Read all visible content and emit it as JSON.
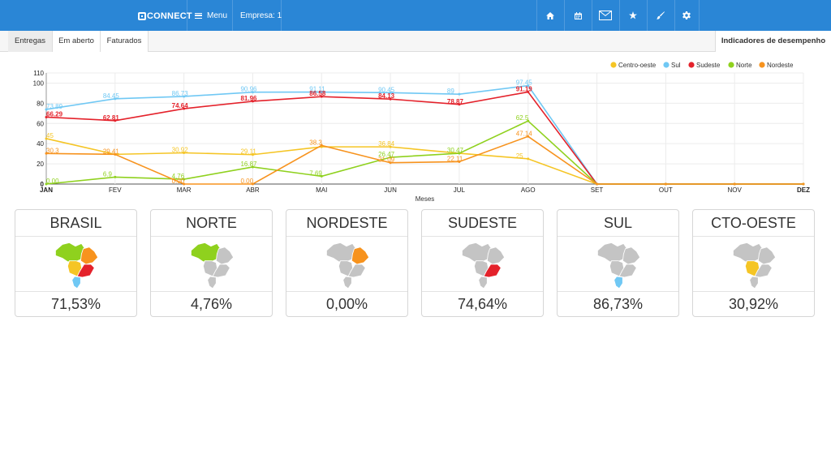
{
  "brand": {
    "name": "CONNECT"
  },
  "topbar": {
    "menu_label": "Menu",
    "empresa_label": "Empresa: 1",
    "icons": [
      "home-icon",
      "calendar-icon",
      "envelope-icon",
      "star-icon",
      "brush-icon",
      "gear-icon"
    ]
  },
  "tabs": [
    {
      "label": "Entregas"
    },
    {
      "label": "Em aberto"
    },
    {
      "label": "Faturados"
    }
  ],
  "indicadores_label": "Indicadores de desempenho",
  "chart_data": {
    "type": "line",
    "categories": [
      "JAN",
      "FEV",
      "MAR",
      "ABR",
      "MAI",
      "JUN",
      "JUL",
      "AGO",
      "SET",
      "OUT",
      "NOV",
      "DEZ"
    ],
    "xlabel": "Meses",
    "ylabel": "",
    "ylim": [
      0,
      110
    ],
    "yticks": [
      0,
      20,
      40,
      60,
      80,
      100,
      110
    ],
    "grid": true,
    "legend_position": "top-right",
    "series": [
      {
        "name": "Centro-oeste",
        "color": "#f5c525",
        "values": [
          45,
          29.41,
          30.92,
          29.11,
          36.84,
          36.84,
          30.47,
          25,
          0,
          0,
          0,
          0
        ],
        "labels": [
          "45",
          "",
          "30.92",
          "29.11",
          "",
          "36.84",
          "",
          "25",
          "",
          "",
          "",
          ""
        ]
      },
      {
        "name": "Sul",
        "color": "#70c8f4",
        "values": [
          73.89,
          84.45,
          86.73,
          90.96,
          91.11,
          90.45,
          89,
          97.45,
          0,
          0,
          0,
          0
        ],
        "labels": [
          "73.89",
          "84.45",
          "86.73",
          "90.96",
          "91.11",
          "90.45",
          "89",
          "97.45",
          "",
          "",
          "",
          ""
        ]
      },
      {
        "name": "Sudeste",
        "color": "#e4222b",
        "values": [
          66.29,
          62.81,
          74.64,
          81.96,
          86.58,
          84.13,
          78.87,
          91.19,
          0,
          0,
          0,
          0
        ],
        "labels": [
          "66.29",
          "62.81",
          "74.64",
          "81.96",
          "86.58",
          "84.13",
          "78.87",
          "91.19",
          "",
          "",
          "",
          ""
        ]
      },
      {
        "name": "Norte",
        "color": "#8fd11e",
        "values": [
          0,
          6.9,
          4.76,
          16.87,
          7.69,
          26.47,
          30.47,
          62.5,
          0,
          0,
          0,
          0
        ],
        "labels": [
          "0.00",
          "6.9",
          "4.76",
          "16.87",
          "7.69",
          "26.47",
          "30.47",
          "62.5",
          "",
          "",
          "",
          ""
        ]
      },
      {
        "name": "Nordeste",
        "color": "#f7931e",
        "values": [
          30.3,
          29.41,
          0,
          0,
          38.3,
          21.09,
          22.11,
          47.14,
          0,
          0,
          0,
          0
        ],
        "labels": [
          "30.3",
          "29.41",
          "0.00",
          "0.00",
          "38.3",
          "21.09",
          "22.11",
          "47.14",
          "",
          "",
          "",
          ""
        ]
      }
    ]
  },
  "regions": [
    {
      "name": "BRASIL",
      "percent": "71,53%",
      "map": "all"
    },
    {
      "name": "NORTE",
      "percent": "4,76%",
      "map": "norte"
    },
    {
      "name": "NORDESTE",
      "percent": "0,00%",
      "map": "nordeste"
    },
    {
      "name": "SUDESTE",
      "percent": "74,64%",
      "map": "sudeste"
    },
    {
      "name": "SUL",
      "percent": "86,73%",
      "map": "sul"
    },
    {
      "name": "CTO-OESTE",
      "percent": "30,92%",
      "map": "centro"
    }
  ],
  "map_colors": {
    "norte": "#8fd11e",
    "nordeste": "#f7931e",
    "sudeste": "#e4222b",
    "sul": "#70c8f4",
    "centro": "#f5c525",
    "inactive": "#c4c4c4"
  }
}
